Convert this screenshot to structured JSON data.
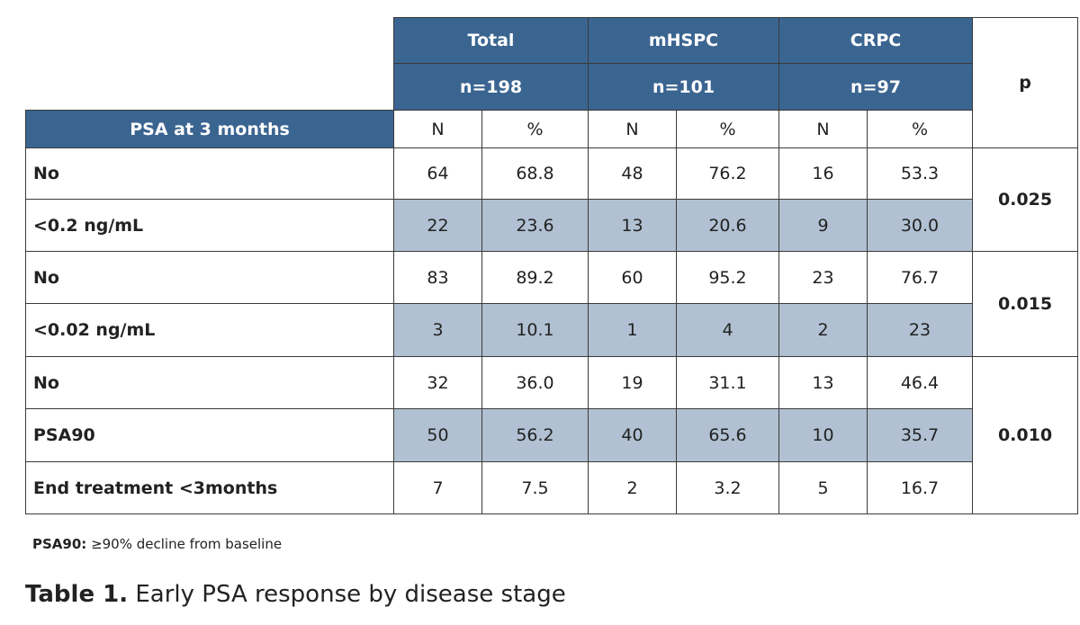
{
  "table": {
    "groups": [
      {
        "name": "Total",
        "n": "n=198"
      },
      {
        "name": "mHSPC",
        "n": "n=101"
      },
      {
        "name": "CRPC",
        "n": "n=97"
      }
    ],
    "p_header": "p",
    "row_header": "PSA at 3 months",
    "subheaders": [
      "N",
      "%",
      "N",
      "%",
      "N",
      "%"
    ],
    "rows": [
      {
        "label": "No",
        "cells": [
          "64",
          "68.8",
          "48",
          "76.2",
          "16",
          "53.3"
        ]
      },
      {
        "label": "<0.2 ng/mL",
        "cells": [
          "22",
          "23.6",
          "13",
          "20.6",
          "9",
          "30.0"
        ]
      },
      {
        "label": "No",
        "cells": [
          "83",
          "89.2",
          "60",
          "95.2",
          "23",
          "76.7"
        ]
      },
      {
        "label": "<0.02 ng/mL",
        "cells": [
          "3",
          "10.1",
          "1",
          "4",
          "2",
          "23"
        ]
      },
      {
        "label": "No",
        "cells": [
          "32",
          "36.0",
          "19",
          "31.1",
          "13",
          "46.4"
        ]
      },
      {
        "label": "PSA90",
        "cells": [
          "50",
          "56.2",
          "40",
          "65.6",
          "10",
          "35.7"
        ]
      },
      {
        "label": "End treatment <3months",
        "cells": [
          "7",
          "7.5",
          "2",
          "3.2",
          "5",
          "16.7"
        ]
      }
    ],
    "p_values": [
      "0.025",
      "0.015",
      "0.010"
    ]
  },
  "footnote": {
    "term": "PSA90:",
    "text": "≥90% decline from baseline"
  },
  "caption": {
    "label": "Table 1.",
    "text": "Early PSA response by disease stage"
  }
}
